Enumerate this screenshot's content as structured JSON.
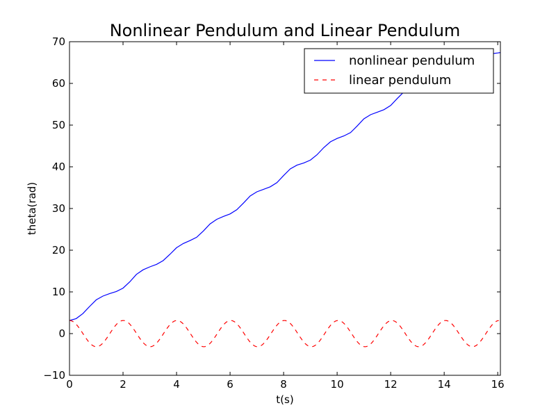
{
  "chart_data": {
    "type": "line",
    "title": "Nonlinear Pendulum and Linear Pendulum",
    "xlabel": "t(s)",
    "ylabel": "theta(rad)",
    "xlim": [
      0,
      16.1
    ],
    "ylim": [
      -10,
      70
    ],
    "xticks": [
      0,
      2,
      4,
      6,
      8,
      10,
      12,
      14,
      16
    ],
    "xtick_labels": [
      "0",
      "2",
      "4",
      "6",
      "8",
      "10",
      "12",
      "14",
      "16"
    ],
    "yticks": [
      -10,
      0,
      10,
      20,
      30,
      40,
      50,
      60,
      70
    ],
    "ytick_labels": [
      "−10",
      "0",
      "10",
      "20",
      "30",
      "40",
      "50",
      "60",
      "70"
    ],
    "grid": false,
    "legend_position": "top-right",
    "series": [
      {
        "name": "nonlinear pendulum",
        "color": "#0000ff",
        "linestyle": "solid",
        "x": [
          0,
          0.25,
          0.5,
          0.75,
          1.0,
          1.25,
          1.5,
          1.75,
          2.0,
          2.25,
          2.5,
          2.75,
          3.0,
          3.25,
          3.5,
          3.75,
          4.0,
          4.25,
          4.5,
          4.75,
          5.0,
          5.25,
          5.5,
          5.75,
          6.0,
          6.25,
          6.5,
          6.75,
          7.0,
          7.25,
          7.5,
          7.75,
          8.0,
          8.25,
          8.5,
          8.75,
          9.0,
          9.25,
          9.5,
          9.75,
          10.0,
          10.25,
          10.5,
          10.75,
          11.0,
          11.25,
          11.5,
          11.75,
          12.0,
          12.25,
          12.5,
          12.75,
          13.0,
          13.25,
          13.5,
          13.75,
          14.0,
          14.25,
          14.5,
          14.75,
          15.0,
          15.25,
          15.5,
          15.75,
          16.0,
          16.1
        ],
        "y": [
          3.14,
          3.6,
          4.8,
          6.5,
          8.1,
          9.0,
          9.6,
          10.1,
          10.9,
          12.4,
          14.2,
          15.3,
          16.0,
          16.6,
          17.5,
          19.0,
          20.6,
          21.6,
          22.3,
          23.1,
          24.6,
          26.3,
          27.4,
          28.1,
          28.7,
          29.7,
          31.3,
          33.0,
          34.0,
          34.6,
          35.2,
          36.2,
          37.9,
          39.5,
          40.4,
          40.9,
          41.6,
          42.9,
          44.6,
          46.0,
          46.8,
          47.4,
          48.2,
          49.8,
          51.5,
          52.5,
          53.1,
          53.7,
          54.7,
          56.4,
          58.0,
          59.0,
          59.6,
          60.2,
          61.2,
          62.9,
          64.5,
          65.3,
          65.8,
          66.2,
          66.5,
          66.7,
          66.9,
          67.1,
          67.3,
          67.4
        ]
      },
      {
        "name": "linear pendulum",
        "color": "#ff0000",
        "linestyle": "dashed",
        "amplitude": 3.14,
        "angular_frequency": 3.13,
        "x": [
          0,
          0.5,
          1.0,
          1.5,
          2.0,
          2.5,
          3.0,
          3.5,
          4.0,
          4.5,
          5.0,
          5.5,
          6.0,
          6.5,
          7.0,
          7.5,
          8.0,
          8.5,
          9.0,
          9.5,
          10.0,
          10.5,
          11.0,
          11.5,
          12.0,
          12.5,
          13.0,
          13.5,
          14.0,
          14.5,
          15.0,
          15.5,
          16.0
        ],
        "y": [
          3.14,
          0.03,
          -3.14,
          -0.06,
          3.14,
          0.09,
          -3.14,
          -0.12,
          3.14,
          0.15,
          -3.13,
          -0.19,
          3.13,
          0.22,
          -3.13,
          -0.25,
          3.13,
          0.28,
          -3.12,
          -0.31,
          3.12,
          0.34,
          -3.12,
          -0.37,
          3.11,
          0.41,
          -3.11,
          -0.44,
          3.1,
          0.47,
          -3.1,
          -0.5,
          3.09
        ]
      }
    ]
  }
}
